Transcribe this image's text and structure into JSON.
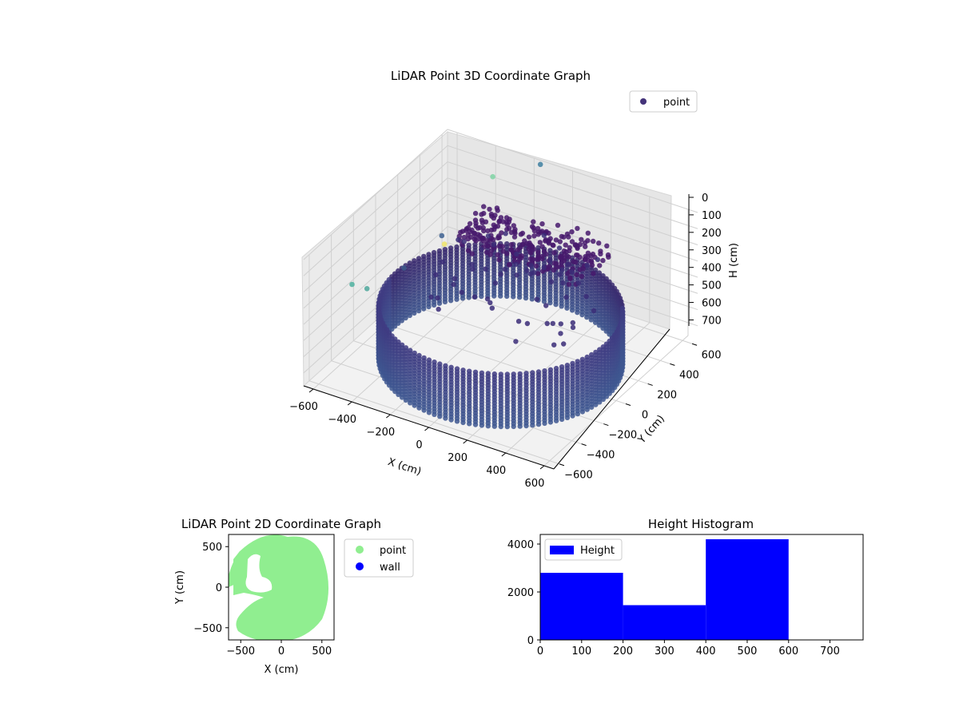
{
  "chart_data": [
    {
      "type": "scatter3d",
      "title": "LiDAR Point 3D Coordinate Graph",
      "xlabel": "X (cm)",
      "ylabel": "Y (cm)",
      "zlabel": "H (cm)",
      "xlim": [
        -650,
        650
      ],
      "ylim": [
        -650,
        650
      ],
      "zlim": [
        0,
        780
      ],
      "z_inverted": true,
      "xticks": [
        -600,
        -400,
        -200,
        0,
        200,
        400,
        600
      ],
      "yticks": [
        -600,
        -400,
        -200,
        0,
        200,
        400,
        600
      ],
      "zticks": [
        0,
        100,
        200,
        300,
        400,
        500,
        600,
        700
      ],
      "legend": [
        "point"
      ],
      "legend_position": "top-right",
      "colormap": "viridis",
      "grid": true,
      "series": [
        {
          "name": "point",
          "color": "#44337a",
          "shape": "cylindrical wall ring",
          "radius": 550,
          "height_range": [
            450,
            780
          ],
          "ceiling_cluster": {
            "x_range": [
              -200,
              450
            ],
            "y_range": [
              -100,
              250
            ],
            "height_range": [
              0,
              100
            ]
          },
          "outliers": [
            {
              "x": -600,
              "y": -300,
              "z": 350,
              "color": "#4fb1a0"
            },
            {
              "x": -580,
              "y": -200,
              "z": 430,
              "color": "#4fa89c"
            },
            {
              "x": -560,
              "y": 100,
              "z": 480,
              "color": "#3d5a8a"
            },
            {
              "x": -450,
              "y": 250,
              "z": 330,
              "color": "#3e6191"
            },
            {
              "x": -300,
              "y": 450,
              "z": 30,
              "color": "#7fd3a5"
            },
            {
              "x": -150,
              "y": 620,
              "z": 0,
              "color": "#3e7fa0"
            },
            {
              "x": -350,
              "y": 100,
              "z": 250,
              "color": "#f0e56a"
            }
          ]
        }
      ]
    },
    {
      "type": "scatter",
      "title": "LiDAR Point 2D Coordinate Graph",
      "xlabel": "X (cm)",
      "ylabel": "Y (cm)",
      "xlim": [
        -650,
        650
      ],
      "ylim": [
        -650,
        650
      ],
      "xticks": [
        -500,
        0,
        500
      ],
      "yticks": [
        -500,
        0,
        500
      ],
      "legend": [
        "point",
        "wall"
      ],
      "legend_position": "outside-right",
      "series": [
        {
          "name": "point",
          "color": "#90ee90",
          "shape": "filled disc",
          "radius": 590
        },
        {
          "name": "wall",
          "color": "#0000ff",
          "values": []
        }
      ]
    },
    {
      "type": "bar",
      "title": "Height Histogram",
      "xlabel": "",
      "ylabel": "",
      "xlim": [
        0,
        780
      ],
      "ylim": [
        0,
        4400
      ],
      "xticks": [
        0,
        100,
        200,
        300,
        400,
        500,
        600,
        700
      ],
      "yticks": [
        0,
        2000,
        4000
      ],
      "bin_edges": [
        0,
        200,
        400,
        600
      ],
      "values": [
        2800,
        1450,
        4200
      ],
      "legend": [
        "Height"
      ],
      "legend_position": "top-left",
      "color": "#0000ff"
    }
  ]
}
